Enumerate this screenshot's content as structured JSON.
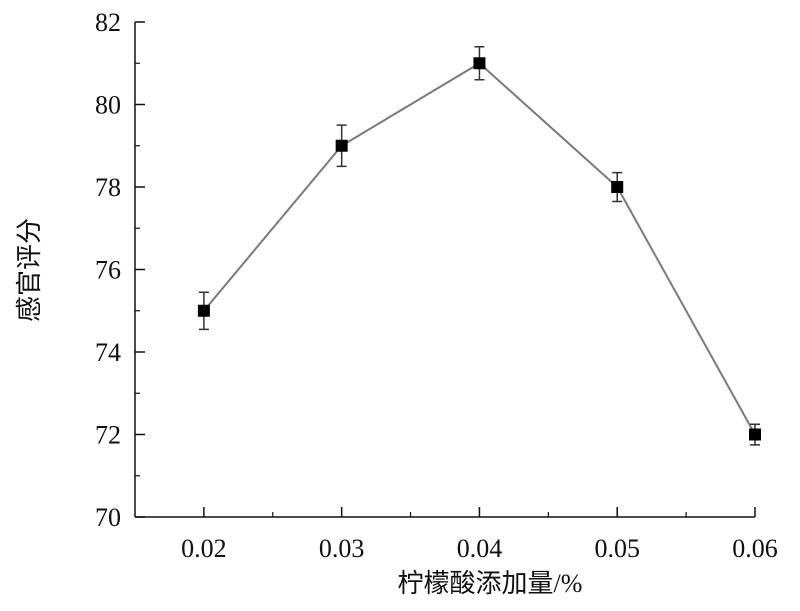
{
  "chart_data": {
    "type": "line",
    "x_label": "柠檬酸添加量/%",
    "y_label": "感官评分",
    "x": [
      0.02,
      0.03,
      0.04,
      0.05,
      0.06
    ],
    "series": [
      {
        "color": "#000000",
        "line_color": "#7a7a7a",
        "values": [
          75,
          79,
          81,
          78,
          72
        ],
        "errors": [
          0.45,
          0.5,
          0.4,
          0.35,
          0.25
        ]
      }
    ],
    "xlim": [
      0.015,
      0.06
    ],
    "xticks": [
      0.02,
      0.03,
      0.04,
      0.05,
      0.06
    ],
    "xminorticks": [
      0.025,
      0.035,
      0.045,
      0.055
    ],
    "ylim": [
      70,
      82
    ],
    "yticks": [
      70,
      72,
      74,
      76,
      78,
      80,
      82
    ],
    "yminorticks": [
      71,
      73,
      75,
      77,
      79,
      81
    ]
  }
}
